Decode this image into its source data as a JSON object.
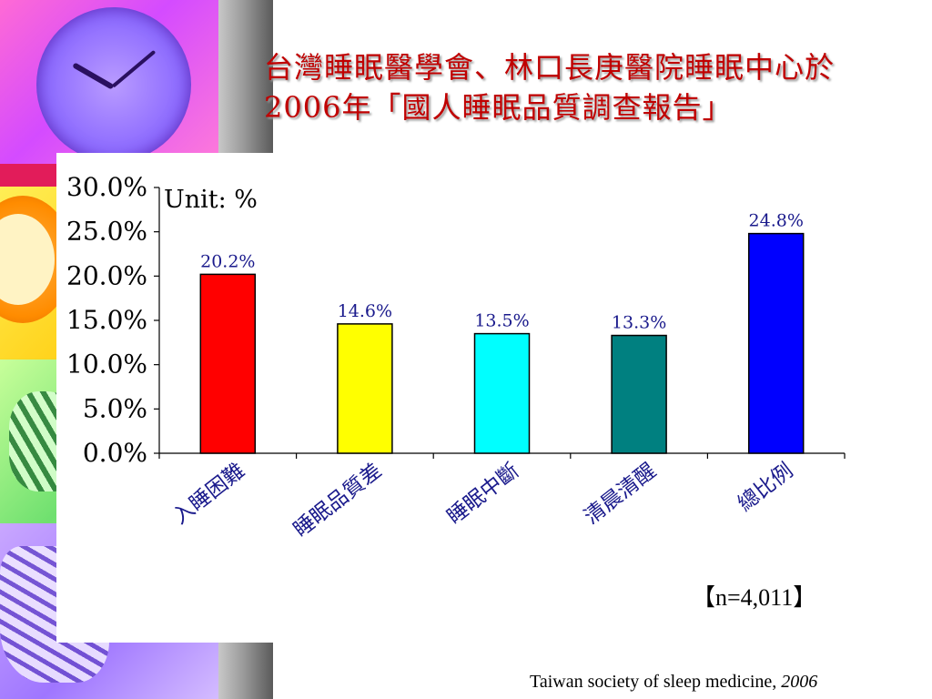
{
  "title": "台灣睡眠醫學會、林口長庚醫院睡眠中心於2006年「國人睡眠品質調查報告」",
  "sample_note": "【n=4,011】",
  "source": {
    "text": "Taiwan society of sleep medicine, ",
    "year": "2006"
  },
  "chart_data": {
    "type": "bar",
    "unit_label": "Unit: %",
    "categories": [
      "入睡困難",
      "睡眠品質差",
      "睡眠中斷",
      "清晨清醒",
      "總比例"
    ],
    "values": [
      20.2,
      14.6,
      13.5,
      13.3,
      24.8
    ],
    "data_labels": [
      "20.2%",
      "14.6%",
      "13.5%",
      "13.3%",
      "24.8%"
    ],
    "colors": [
      "#ff0000",
      "#ffff00",
      "#00ffff",
      "#008080",
      "#0000ff"
    ],
    "ylim": [
      0,
      30
    ],
    "yticks": [
      "0.0%",
      "5.0%",
      "10.0%",
      "15.0%",
      "20.0%",
      "25.0%",
      "30.0%"
    ],
    "grid": false,
    "label_color": "#1a1a8c"
  }
}
